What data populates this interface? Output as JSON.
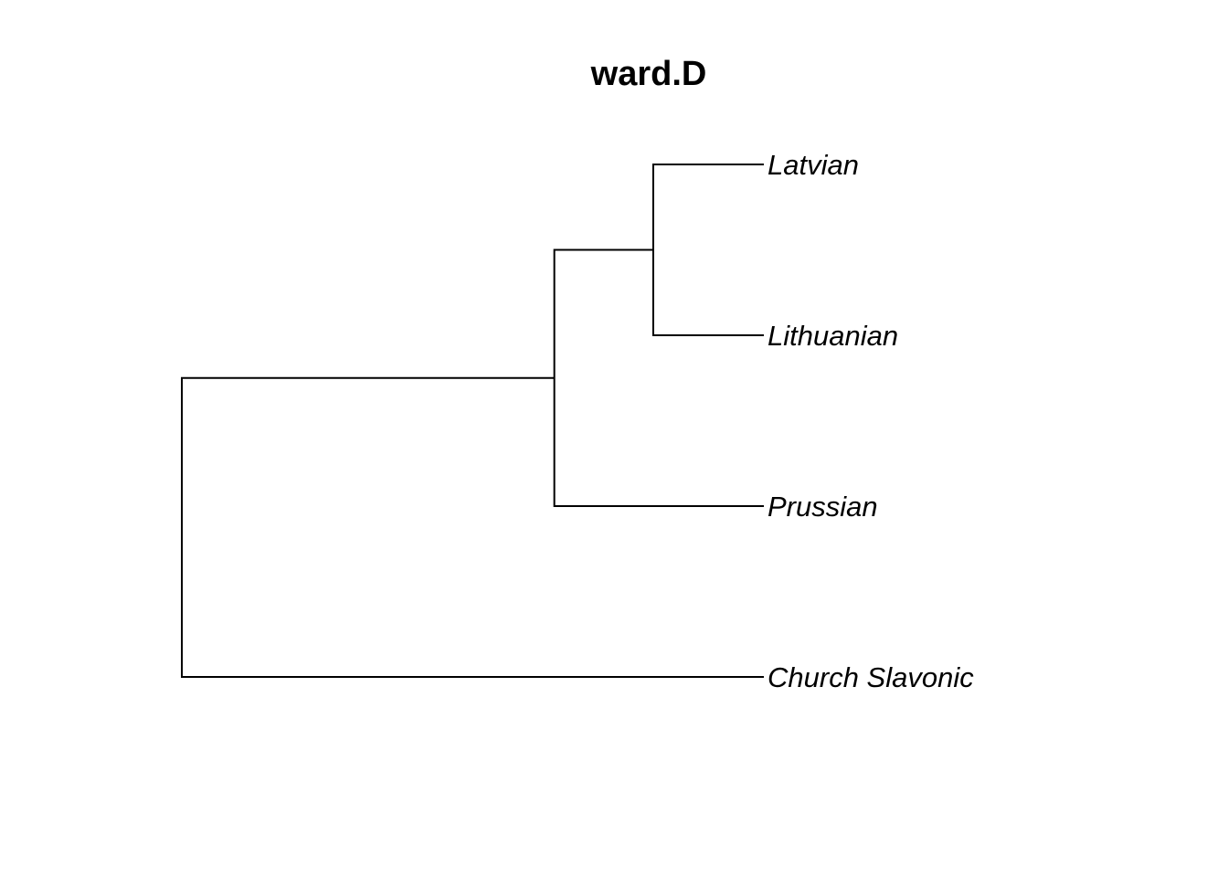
{
  "title": "ward.D",
  "dendrogram": {
    "orientation": "horizontal",
    "leaves_top_to_bottom": [
      "Latvian",
      "Lithuanian",
      "Prussian",
      "Church Slavonic"
    ],
    "merges": [
      {
        "id": "m1",
        "left": "Latvian",
        "right": "Lithuanian",
        "height_fraction": 0.19
      },
      {
        "id": "m2",
        "left": "m1",
        "right": "Prussian",
        "height_fraction": 0.36
      },
      {
        "id": "m3",
        "left": "m2",
        "right": "Church Slavonic",
        "height_fraction": 1.0
      }
    ],
    "line_color": "#000000"
  }
}
